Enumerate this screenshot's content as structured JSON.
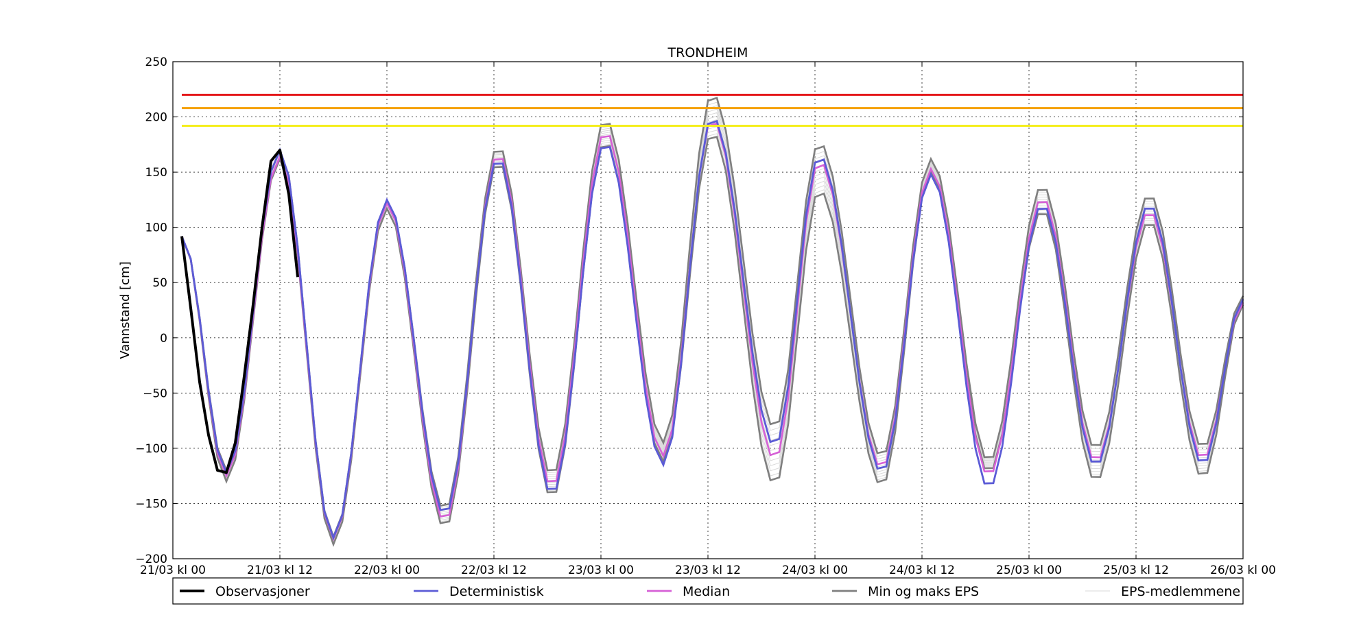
{
  "chart_data": {
    "type": "line",
    "title": "TRONDHEIM",
    "xlabel": "",
    "ylabel": "Vannstand [cm]",
    "ylim": [
      -200,
      250
    ],
    "yticks": [
      -200,
      -150,
      -100,
      -50,
      0,
      50,
      100,
      150,
      200,
      250
    ],
    "x_hours_from_start": [
      0,
      120
    ],
    "x_start": "21/03 kl 00",
    "xticks": [
      "21/03 kl 00",
      "21/03 kl 12",
      "22/03 kl 00",
      "22/03 kl 12",
      "23/03 kl 00",
      "23/03 kl 12",
      "24/03 kl 00",
      "24/03 kl 12",
      "25/03 kl 00",
      "25/03 kl 12",
      "26/03 kl 00"
    ],
    "grid": true,
    "legend_position": "bottom",
    "thresholds": [
      {
        "color": "#e41a1c",
        "value": 220
      },
      {
        "color": "#f5a000",
        "value": 208
      },
      {
        "color": "#f5ee1c",
        "value": 192
      }
    ],
    "extrema": [
      {
        "h": 1,
        "det": 92,
        "med": 92,
        "min": 92,
        "max": 92
      },
      {
        "h": 6,
        "det": -122,
        "med": -125,
        "min": -130,
        "max": -120
      },
      {
        "h": 12,
        "det": 170,
        "med": 164,
        "min": 162,
        "max": 170
      },
      {
        "h": 18,
        "det": -181,
        "med": -182,
        "min": -187,
        "max": -180
      },
      {
        "h": 24,
        "det": 125,
        "med": 122,
        "min": 117,
        "max": 124
      },
      {
        "h": 30.5,
        "det": -160,
        "med": -166,
        "min": -172,
        "max": -156
      },
      {
        "h": 36.5,
        "det": 163,
        "med": 167,
        "min": 160,
        "max": 174
      },
      {
        "h": 42.5,
        "det": -142,
        "med": -135,
        "min": -145,
        "max": -125
      },
      {
        "h": 48.5,
        "det": 177,
        "med": 187,
        "min": 178,
        "max": 198
      },
      {
        "h": 55,
        "det": -115,
        "med": -107,
        "min": -112,
        "max": -95
      },
      {
        "h": 60.5,
        "det": 200,
        "med": 198,
        "min": 186,
        "max": 221
      },
      {
        "h": 67.5,
        "det": -98,
        "med": -110,
        "min": -133,
        "max": -82
      },
      {
        "h": 72.5,
        "det": 165,
        "med": 160,
        "min": 134,
        "max": 177
      },
      {
        "h": 79.5,
        "det": -122,
        "med": -118,
        "min": -134,
        "max": -108
      },
      {
        "h": 85,
        "det": 148,
        "med": 153,
        "min": 150,
        "max": 162
      },
      {
        "h": 91.5,
        "det": -136,
        "med": -125,
        "min": -122,
        "max": -112
      },
      {
        "h": 97.5,
        "det": 121,
        "med": 127,
        "min": 116,
        "max": 138
      },
      {
        "h": 103.5,
        "det": -116,
        "med": -112,
        "min": -130,
        "max": -101
      },
      {
        "h": 109.5,
        "det": 121,
        "med": 115,
        "min": 106,
        "max": 130
      },
      {
        "h": 115.5,
        "det": -115,
        "med": -110,
        "min": -127,
        "max": -100
      },
      {
        "h": 120,
        "det": 35,
        "med": 32,
        "min": 30,
        "max": 38
      }
    ],
    "series": [
      {
        "name": "Observasjoner",
        "color": "#000000",
        "values": [
          92,
          27,
          -40,
          -88,
          -120,
          -122,
          -95,
          -35,
          30,
          100,
          160,
          170,
          130,
          55
        ]
      },
      {
        "name": "Deterministisk",
        "color": "#5b5bd6"
      },
      {
        "name": "Median",
        "color": "#d660d6"
      },
      {
        "name": "Min og maks EPS",
        "color": "#7f7f7f"
      },
      {
        "name": "EPS-medlemmene",
        "color": "#d9d9d9"
      }
    ]
  }
}
